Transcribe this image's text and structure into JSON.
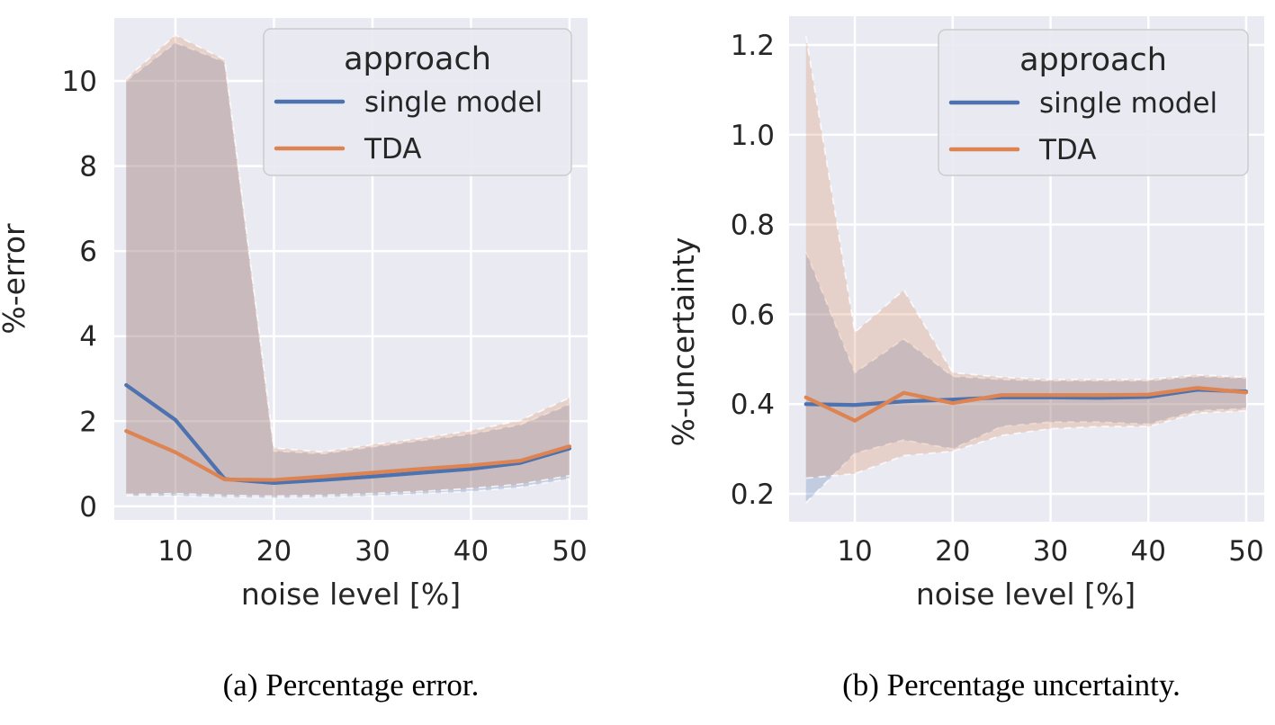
{
  "figure": {
    "style": "seaborn-darkgrid",
    "plot_bg": "#EAEAF2",
    "grid_color": "#FFFFFF",
    "text_color": "#262626",
    "band_alpha": 0.25,
    "band_edge_color": "#FFFFFF"
  },
  "chart_data": [
    {
      "id": "percentage-error",
      "type": "line",
      "title": "",
      "xlabel": "noise level [%]",
      "ylabel": "%-error",
      "caption": "(a) Percentage error.",
      "x": [
        5,
        10,
        15,
        20,
        25,
        30,
        35,
        40,
        45,
        50
      ],
      "xticks": [
        10,
        20,
        30,
        40,
        50
      ],
      "xticklabels": [
        "10",
        "20",
        "30",
        "40",
        "50"
      ],
      "yticks": [
        0,
        2,
        4,
        6,
        8,
        10
      ],
      "yticklabels": [
        "0",
        "2",
        "4",
        "6",
        "8",
        "10"
      ],
      "xlim": [
        3.79,
        51.83
      ],
      "ylim": [
        -0.32,
        11.48
      ],
      "grid": true,
      "legend": {
        "title": "approach",
        "position": "upper right"
      },
      "series": [
        {
          "name": "single model",
          "color": "#4C72B0",
          "values": [
            2.85,
            2.03,
            0.64,
            0.55,
            0.62,
            0.7,
            0.79,
            0.88,
            1.02,
            1.36
          ],
          "band_low": [
            0.25,
            0.25,
            0.22,
            0.2,
            0.22,
            0.25,
            0.3,
            0.35,
            0.45,
            0.65
          ],
          "band_high": [
            10.0,
            10.9,
            10.45,
            1.3,
            1.24,
            1.4,
            1.55,
            1.7,
            1.92,
            2.4
          ]
        },
        {
          "name": "TDA",
          "color": "#DD8452",
          "values": [
            1.77,
            1.27,
            0.63,
            0.62,
            0.7,
            0.79,
            0.88,
            0.96,
            1.07,
            1.41
          ],
          "band_low": [
            0.28,
            0.3,
            0.26,
            0.24,
            0.26,
            0.3,
            0.35,
            0.42,
            0.52,
            0.72
          ],
          "band_high": [
            10.05,
            11.08,
            10.5,
            1.37,
            1.28,
            1.45,
            1.6,
            1.78,
            2.02,
            2.55
          ]
        }
      ]
    },
    {
      "id": "percentage-uncertainty",
      "type": "line",
      "title": "",
      "xlabel": "noise level [%]",
      "ylabel": "%-uncertainty",
      "caption": "(b) Percentage uncertainty.",
      "x": [
        5,
        10,
        15,
        20,
        25,
        30,
        35,
        40,
        45,
        50
      ],
      "xticks": [
        10,
        20,
        30,
        40,
        50
      ],
      "xticklabels": [
        "10",
        "20",
        "30",
        "40",
        "50"
      ],
      "yticks": [
        0.2,
        0.4,
        0.6,
        0.8,
        1.0,
        1.2
      ],
      "yticklabels": [
        "0.2",
        "0.4",
        "0.6",
        "0.8",
        "1.0",
        "1.2"
      ],
      "xlim": [
        3.28,
        51.84
      ],
      "ylim": [
        0.138,
        1.264
      ],
      "grid": true,
      "legend": {
        "title": "approach",
        "position": "upper right"
      },
      "series": [
        {
          "name": "single model",
          "color": "#4C72B0",
          "values": [
            0.4,
            0.398,
            0.406,
            0.41,
            0.415,
            0.415,
            0.414,
            0.416,
            0.432,
            0.428
          ],
          "band_low": [
            0.18,
            0.29,
            0.32,
            0.3,
            0.35,
            0.36,
            0.36,
            0.355,
            0.385,
            0.39
          ],
          "band_high": [
            0.74,
            0.47,
            0.545,
            0.462,
            0.455,
            0.452,
            0.452,
            0.452,
            0.462,
            0.458
          ]
        },
        {
          "name": "TDA",
          "color": "#DD8452",
          "values": [
            0.415,
            0.363,
            0.425,
            0.402,
            0.42,
            0.42,
            0.42,
            0.421,
            0.436,
            0.426
          ],
          "band_low": [
            0.235,
            0.245,
            0.285,
            0.295,
            0.33,
            0.345,
            0.35,
            0.35,
            0.38,
            0.385
          ],
          "band_high": [
            1.22,
            0.56,
            0.654,
            0.47,
            0.46,
            0.455,
            0.455,
            0.455,
            0.465,
            0.46
          ]
        }
      ]
    }
  ]
}
